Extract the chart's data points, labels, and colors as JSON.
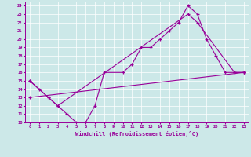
{
  "xlabel": "Windchill (Refroidissement éolien,°C)",
  "bg_color": "#cce8e8",
  "line_color": "#990099",
  "xlim": [
    -0.5,
    23.5
  ],
  "ylim": [
    10,
    24.5
  ],
  "xticks": [
    0,
    1,
    2,
    3,
    4,
    5,
    6,
    7,
    8,
    9,
    10,
    11,
    12,
    13,
    14,
    15,
    16,
    17,
    18,
    19,
    20,
    21,
    22,
    23
  ],
  "yticks": [
    10,
    11,
    12,
    13,
    14,
    15,
    16,
    17,
    18,
    19,
    20,
    21,
    22,
    23,
    24
  ],
  "line1_x": [
    0,
    1,
    2,
    3,
    4,
    5,
    6,
    7,
    8,
    10,
    11,
    12,
    13,
    14,
    15,
    16,
    17,
    18,
    19,
    20,
    21,
    22,
    23
  ],
  "line1_y": [
    15,
    14,
    13,
    12,
    11,
    10,
    10,
    12,
    16,
    16,
    17,
    19,
    19,
    20,
    21,
    22,
    24,
    23,
    20,
    18,
    16,
    16,
    16
  ],
  "line2_x": [
    0,
    2,
    3,
    17,
    18,
    22,
    23
  ],
  "line2_y": [
    15,
    13,
    12,
    23,
    22,
    16,
    16
  ],
  "line3_x": [
    0,
    23
  ],
  "line3_y": [
    13,
    16
  ]
}
